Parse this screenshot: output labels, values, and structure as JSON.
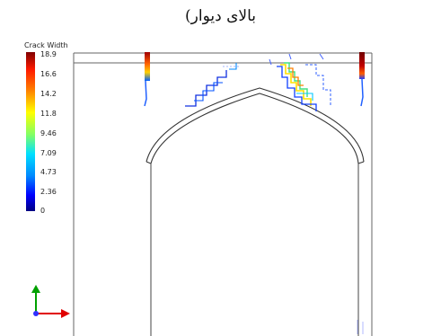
{
  "title": "بالای دیوار)",
  "legend": {
    "title": "Crack Width",
    "ticks": [
      "18.9",
      "16.6",
      "14.2",
      "11.8",
      "9.46",
      "7.09",
      "4.73",
      "2.36",
      "0"
    ]
  },
  "colors": {
    "frame": "#555555",
    "arch": "#333333",
    "axis_y": "#00a000",
    "axis_x": "#e00000",
    "axis_origin": "#3030ff"
  }
}
